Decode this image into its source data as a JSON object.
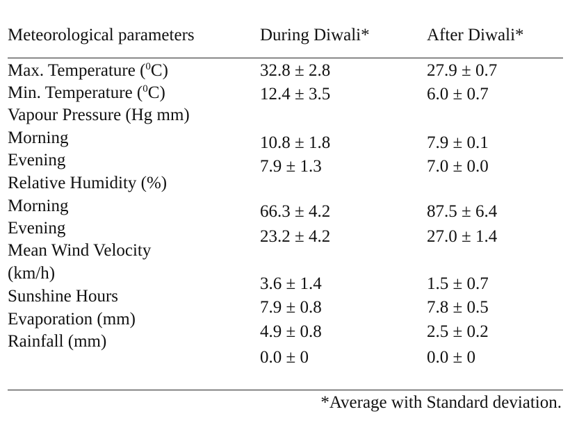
{
  "header": {
    "col1": "Meteorological parameters",
    "col2": "During Diwali*",
    "col3": "After Diwali*"
  },
  "parameters": [
    {
      "label_pre": "Max. Temperature (",
      "label_sup": "0",
      "label_post": "C)"
    },
    {
      "label_pre": "Min. Temperature (",
      "label_sup": "0",
      "label_post": "C)"
    },
    {
      "label": "Vapour Pressure (Hg mm)"
    },
    {
      "label": "Morning"
    },
    {
      "label": "Evening"
    },
    {
      "label": "Relative Humidity (%)"
    },
    {
      "label": "Morning"
    },
    {
      "label": "Evening"
    },
    {
      "label": "Mean Wind Velocity"
    },
    {
      "label": "(km/h)"
    },
    {
      "label": "Sunshine Hours"
    },
    {
      "label": "Evaporation (mm)"
    },
    {
      "label": "Rainfall (mm)"
    }
  ],
  "during": [
    "32.8 ± 2.8",
    "12.4 ± 3.5",
    "10.8 ± 1.8",
    "7.9 ± 1.3",
    "66.3 ± 4.2",
    "23.2 ± 4.2",
    "3.6 ± 1.4",
    "7.9 ± 0.8",
    "4.9 ± 0.8",
    "0.0 ± 0"
  ],
  "after": [
    "27.9 ± 0.7",
    "6.0 ± 0.7",
    "7.9 ± 0.1",
    "7.0 ± 0.0",
    "87.5 ± 6.4",
    "27.0 ± 1.4",
    "1.5 ± 0.7",
    "7.8 ± 0.5",
    "2.5 ± 0.2",
    "0.0 ± 0"
  ],
  "footnote": "*Average with Standard deviation."
}
